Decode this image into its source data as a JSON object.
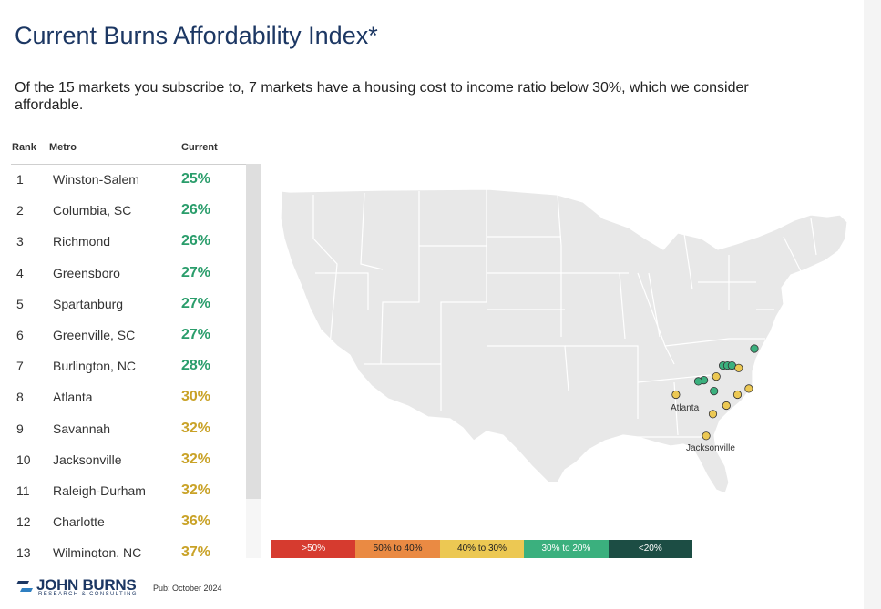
{
  "title": "Current Burns Affordability Index*",
  "subtitle": "Of the 15 markets you subscribe to, 7 markets have a housing cost to income ratio below 30%, which we consider affordable.",
  "table": {
    "headers": {
      "rank": "Rank",
      "metro": "Metro",
      "current": "Current"
    },
    "rows": [
      {
        "rank": "1",
        "metro": "Winston-Salem",
        "value": "25%",
        "color": "#2a9d6b"
      },
      {
        "rank": "2",
        "metro": "Columbia, SC",
        "value": "26%",
        "color": "#2a9d6b"
      },
      {
        "rank": "3",
        "metro": "Richmond",
        "value": "26%",
        "color": "#2a9d6b"
      },
      {
        "rank": "4",
        "metro": "Greensboro",
        "value": "27%",
        "color": "#2a9d6b"
      },
      {
        "rank": "5",
        "metro": "Spartanburg",
        "value": "27%",
        "color": "#2a9d6b"
      },
      {
        "rank": "6",
        "metro": "Greenville, SC",
        "value": "27%",
        "color": "#2a9d6b"
      },
      {
        "rank": "7",
        "metro": "Burlington, NC",
        "value": "28%",
        "color": "#2a9d6b"
      },
      {
        "rank": "8",
        "metro": "Atlanta",
        "value": "30%",
        "color": "#c9a227"
      },
      {
        "rank": "9",
        "metro": "Savannah",
        "value": "32%",
        "color": "#c9a227"
      },
      {
        "rank": "10",
        "metro": "Jacksonville",
        "value": "32%",
        "color": "#c9a227"
      },
      {
        "rank": "11",
        "metro": "Raleigh-Durham",
        "value": "32%",
        "color": "#c9a227"
      },
      {
        "rank": "12",
        "metro": "Charlotte",
        "value": "36%",
        "color": "#c9a227"
      },
      {
        "rank": "13",
        "metro": "Wilmington, NC",
        "value": "37%",
        "color": "#c9a227"
      }
    ]
  },
  "chart_data": {
    "type": "scatter",
    "title": "Current Burns Affordability Index* (map of subscribed markets)",
    "categories_legend": [
      {
        "label": ">50%",
        "color": "#d63b2f",
        "text_color": "#ffffff"
      },
      {
        "label": "50% to 40%",
        "color": "#ea8a43",
        "text_color": "#222222"
      },
      {
        "label": "40% to 30%",
        "color": "#ecc853",
        "text_color": "#222222"
      },
      {
        "label": "30% to 20%",
        "color": "#3bb07e",
        "text_color": "#ffffff"
      },
      {
        "label": "<20%",
        "color": "#1c4d44",
        "text_color": "#ffffff"
      }
    ],
    "map_labels": [
      "Atlanta",
      "Jacksonville"
    ],
    "markets": [
      {
        "lon": -77.4,
        "lat": 37.5,
        "bucket": "30% to 20%"
      },
      {
        "lon": -80.2,
        "lat": 36.1,
        "bucket": "30% to 20%"
      },
      {
        "lon": -79.8,
        "lat": 36.1,
        "bucket": "30% to 20%"
      },
      {
        "lon": -79.4,
        "lat": 36.1,
        "bucket": "30% to 20%"
      },
      {
        "lon": -81.9,
        "lat": 34.9,
        "bucket": "30% to 20%"
      },
      {
        "lon": -82.4,
        "lat": 34.8,
        "bucket": "30% to 20%"
      },
      {
        "lon": -81.0,
        "lat": 34.0,
        "bucket": "30% to 20%"
      },
      {
        "lon": -78.8,
        "lat": 35.9,
        "bucket": "40% to 30%"
      },
      {
        "lon": -80.8,
        "lat": 35.2,
        "bucket": "40% to 30%"
      },
      {
        "lon": -84.4,
        "lat": 33.7,
        "bucket": "40% to 30%"
      },
      {
        "lon": -81.1,
        "lat": 32.1,
        "bucket": "40% to 30%"
      },
      {
        "lon": -81.7,
        "lat": 30.3,
        "bucket": "40% to 30%"
      },
      {
        "lon": -77.9,
        "lat": 34.2,
        "bucket": "40% to 30%"
      },
      {
        "lon": -79.9,
        "lat": 32.8,
        "bucket": "40% to 30%"
      },
      {
        "lon": -78.9,
        "lat": 33.7,
        "bucket": "40% to 30%"
      }
    ]
  },
  "logo": {
    "name": "JOHN BURNS",
    "sub": "RESEARCH & CONSULTING"
  },
  "pub": "Pub: October 2024"
}
